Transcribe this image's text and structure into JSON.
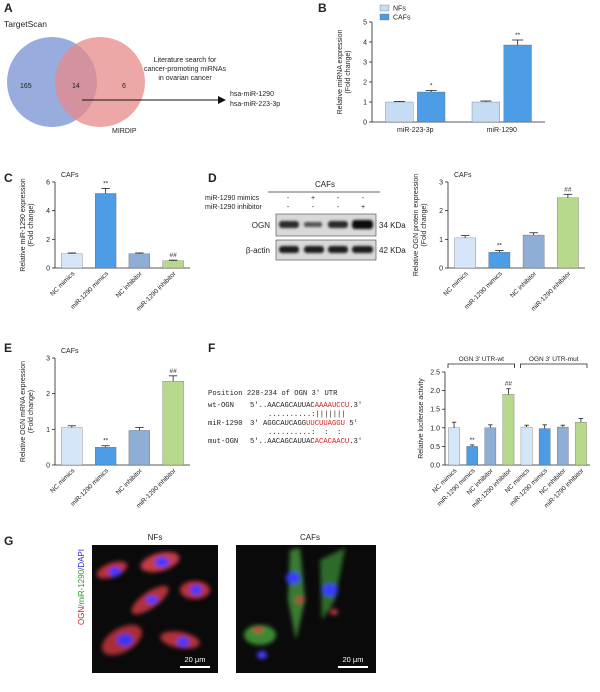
{
  "panel_labels": [
    "A",
    "B",
    "C",
    "D",
    "E",
    "F",
    "G"
  ],
  "venn": {
    "left": "TargetScan",
    "right": "MIRDIP",
    "left_only": 165,
    "overlap": 14,
    "right_only": 6,
    "arrow_text": [
      "Literature search for",
      "cancer-promoting miRNAs",
      "in ovarian cancer"
    ],
    "results": [
      "hsa-miR-1290",
      "hsa-miR-223-3p"
    ]
  },
  "blot": {
    "title": "CAFs",
    "treatments": [
      {
        "name": "miR-1290 mimics",
        "signs": [
          "-",
          "+",
          "-",
          "-"
        ]
      },
      {
        "name": "miR-1290 inhibitor",
        "signs": [
          "-",
          "-",
          "-",
          "+"
        ]
      }
    ],
    "bands": [
      {
        "protein": "OGN",
        "size": "34 KDa"
      },
      {
        "protein": "β-actin",
        "size": "42 KDa"
      }
    ]
  },
  "sequences": {
    "title": "Position 228-234 of OGN 3' UTR",
    "rows": [
      {
        "name": "wt-OGN",
        "parts": [
          "5'..AACAGCAUUAC",
          "AAAAUCCU",
          ".3'"
        ]
      },
      {
        "name": "miR-1290",
        "parts": [
          "3' AGGCAUCAGG",
          "UUCUUAGGU",
          " 5'"
        ]
      },
      {
        "name": "mut-OGN",
        "parts": [
          "5'..AACAGCAUUAC",
          "ACACAACU",
          ".3'"
        ]
      }
    ],
    "pairings": [
      "..........:|||||||",
      "..........:  :  :"
    ]
  },
  "images": {
    "ylabel": [
      "OGN",
      "/miR-1290",
      "/DAPI"
    ],
    "panels": [
      {
        "title": "NFs",
        "scale": "20 μm"
      },
      {
        "title": "CAFs",
        "scale": "20 μm"
      }
    ]
  },
  "chart_data": [
    {
      "type": "bar",
      "ylabel": [
        "Relative miRNA expression",
        "(Fold change)"
      ],
      "categories": [
        "miR-223-3p",
        "miR-1290"
      ],
      "series": [
        {
          "name": "NFs",
          "color": "#c6dcf5",
          "values": [
            1,
            1
          ],
          "errors": [
            0.03,
            0.05
          ],
          "significance": [
            null,
            null
          ]
        },
        {
          "name": "CAFs",
          "color": "#4d9de6",
          "values": [
            1.5,
            3.85
          ],
          "errors": [
            0.08,
            0.25
          ],
          "significance": [
            "*",
            "**"
          ]
        }
      ],
      "ylim": [
        0,
        5
      ],
      "yticks": [
        0,
        1,
        2,
        3,
        4,
        5
      ]
    },
    {
      "type": "bar",
      "subtitle": "CAFs",
      "ylabel": [
        "Relative miR-1290 expression",
        "(Fold change)"
      ],
      "categories": [
        "NC mimics",
        "miR-1290 mimics",
        "NC inhibitor",
        "miR-1290 inhibitor"
      ],
      "values": [
        1.0,
        5.2,
        1.0,
        0.5
      ],
      "errors": [
        0.05,
        0.35,
        0.05,
        0.05
      ],
      "significance": [
        null,
        "**",
        null,
        "##"
      ],
      "colors": [
        "#d5e6f8",
        "#4d9de6",
        "#8eaed6",
        "#b7d98b"
      ],
      "ylim": [
        0,
        6
      ],
      "yticks": [
        0,
        2,
        4,
        6
      ]
    },
    {
      "type": "bar",
      "subtitle": "CAFs",
      "ylabel": [
        "Relative OGN protein expression",
        "(Fold change)"
      ],
      "categories": [
        "NC mimics",
        "miR-1290 mimics",
        "NC inhibitor",
        "miR-1290 inhibitor"
      ],
      "values": [
        1.05,
        0.55,
        1.15,
        2.45
      ],
      "errors": [
        0.08,
        0.06,
        0.08,
        0.12
      ],
      "significance": [
        null,
        "**",
        null,
        "##"
      ],
      "colors": [
        "#d5e6f8",
        "#4d9de6",
        "#8eaed6",
        "#b7d98b"
      ],
      "ylim": [
        0,
        3
      ],
      "yticks": [
        0,
        1,
        2,
        3
      ]
    },
    {
      "type": "bar",
      "subtitle": "CAFs",
      "ylabel": [
        "Relative OGN mRNA expression",
        "(Fold change)"
      ],
      "categories": [
        "NC mimics",
        "miR-1290 mimics",
        "NC inhibitor",
        "miR-1290 inhibitor"
      ],
      "values": [
        1.05,
        0.5,
        0.97,
        2.35
      ],
      "errors": [
        0.05,
        0.04,
        0.08,
        0.15
      ],
      "significance": [
        null,
        "**",
        null,
        "##"
      ],
      "colors": [
        "#d5e6f8",
        "#4d9de6",
        "#8eaed6",
        "#b7d98b"
      ],
      "ylim": [
        0,
        3
      ],
      "yticks": [
        0,
        1,
        2,
        3
      ]
    },
    {
      "type": "bar",
      "ylabel": [
        "Relative luciferase activity"
      ],
      "group_labels": [
        "OGN 3' UTR-wt",
        "OGN 3' UTR-mut"
      ],
      "categories": [
        "NC mimics",
        "miR-1290 mimics",
        "NC inhibitor",
        "miR-1290 inhibitor",
        "NC mimics",
        "miR-1290 mimics",
        "NC inhibitor",
        "miR-1290 inhibitor"
      ],
      "values": [
        1.0,
        0.5,
        1.0,
        1.9,
        1.02,
        0.98,
        1.02,
        1.15
      ],
      "errors": [
        0.15,
        0.04,
        0.08,
        0.15,
        0.05,
        0.1,
        0.05,
        0.1
      ],
      "significance": [
        null,
        "**",
        null,
        "##",
        null,
        null,
        null,
        null
      ],
      "colors": [
        "#d5e6f8",
        "#4d9de6",
        "#8eaed6",
        "#b7d98b",
        "#d5e6f8",
        "#4d9de6",
        "#8eaed6",
        "#b7d98b"
      ],
      "ylim": [
        0,
        2.5
      ],
      "yticks": [
        {
          "value": 0,
          "label": "0.0"
        },
        {
          "value": 0.5,
          "label": "0.5"
        },
        {
          "value": 1,
          "label": "1.0"
        },
        {
          "value": 1.5,
          "label": "1.5"
        },
        {
          "value": 2,
          "label": "2.0"
        },
        {
          "value": 2.5,
          "label": "2.5"
        }
      ]
    }
  ]
}
